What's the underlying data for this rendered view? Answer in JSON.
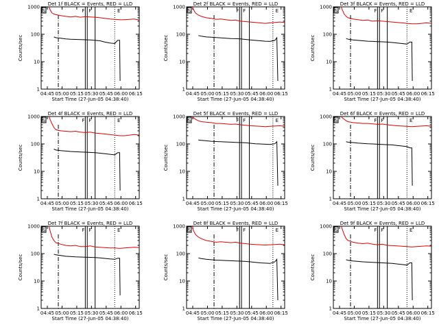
{
  "chart_data": {
    "type": "line",
    "y_scale": "log",
    "ylim": [
      1,
      1000
    ],
    "xlim_minutes": [
      0,
      100
    ],
    "ylabel": "Counts/sec",
    "xlabel": "Start Time (27-Jun-05 04:38:40)",
    "x_ticks": [
      {
        "label": "04:45",
        "minute": 6.3
      },
      {
        "label": "05:00",
        "minute": 21.3
      },
      {
        "label": "05:15",
        "minute": 36.3
      },
      {
        "label": "05:30",
        "minute": 51.3
      },
      {
        "label": "05:45",
        "minute": 66.3
      },
      {
        "label": "06:00",
        "minute": 81.3
      },
      {
        "label": "06:15",
        "minute": 96.3
      }
    ],
    "y_ticks": [
      {
        "label": "1",
        "value": 1
      },
      {
        "label": "10",
        "value": 10
      },
      {
        "label": "100",
        "value": 100
      },
      {
        "label": "1000",
        "value": 1000
      }
    ],
    "series_colors": {
      "events": "#000000",
      "lld": "#dd0000"
    },
    "flag_labels": {
      "start": "S",
      "flare": "F",
      "end": "E"
    },
    "panels": [
      {
        "title": "Det 1f BLACK = Events, RED = LLD",
        "dashdot_line_minute": 17.5,
        "flare_lines_minute": [
          45,
          47,
          55
        ],
        "eclipse_line_minute": 75,
        "series": [
          {
            "name": "LLD",
            "key": "lld",
            "x": [
              8,
              9,
              11,
              13,
              15,
              20,
              25,
              30,
              35,
              40,
              45,
              50,
              55,
              60,
              65,
              70,
              75,
              80,
              85,
              90,
              95,
              100
            ],
            "y": [
              1000,
              800,
              600,
              550,
              520,
              480,
              450,
              430,
              450,
              420,
              440,
              430,
              420,
              400,
              380,
              360,
              350,
              340,
              340,
              350,
              360,
              330
            ]
          },
          {
            "name": "Events",
            "key": "events",
            "x": [
              13,
              15,
              20,
              25,
              30,
              35,
              40,
              45,
              50,
              55,
              60,
              65,
              70,
              75,
              78,
              80,
              80.5
            ],
            "y": [
              80,
              75,
              72,
              68,
              66,
              65,
              64,
              63,
              62,
              60,
              58,
              52,
              48,
              46,
              60,
              60,
              2
            ]
          }
        ]
      },
      {
        "title": "Det 2f BLACK = Events, RED = LLD",
        "dashdot_line_minute": 28,
        "flare_lines_minute": [
          54,
          56,
          64
        ],
        "eclipse_line_minute": 88,
        "series": [
          {
            "name": "LLD",
            "key": "lld",
            "x": [
              6,
              7,
              9,
              12,
              15,
              20,
              25,
              30,
              35,
              40,
              45,
              50,
              55,
              60,
              65,
              70,
              75,
              80,
              85,
              90,
              95,
              100
            ],
            "y": [
              1000,
              800,
              600,
              500,
              450,
              400,
              380,
              350,
              360,
              340,
              320,
              330,
              300,
              290,
              280,
              270,
              260,
              250,
              260,
              270,
              280,
              270
            ]
          },
          {
            "name": "Events",
            "key": "events",
            "x": [
              12,
              15,
              20,
              25,
              30,
              35,
              40,
              45,
              50,
              55,
              60,
              65,
              70,
              75,
              80,
              85,
              90,
              92,
              93
            ],
            "y": [
              90,
              85,
              80,
              78,
              76,
              74,
              72,
              70,
              69,
              68,
              65,
              62,
              60,
              58,
              56,
              55,
              60,
              75,
              2
            ]
          }
        ]
      },
      {
        "title": "Det 3f BLACK = Events, RED = LLD",
        "dashdot_line_minute": 17.5,
        "flare_lines_minute": [
          45,
          47,
          55
        ],
        "eclipse_line_minute": 75,
        "series": [
          {
            "name": "LLD",
            "key": "lld",
            "x": [
              8,
              9,
              11,
              13,
              15,
              20,
              25,
              30,
              35,
              40,
              45,
              50,
              55,
              60,
              65,
              70,
              75,
              80,
              85,
              90,
              95,
              100
            ],
            "y": [
              1000,
              800,
              550,
              450,
              400,
              360,
              340,
              320,
              330,
              300,
              310,
              300,
              290,
              280,
              270,
              260,
              250,
              240,
              240,
              250,
              260,
              250
            ]
          },
          {
            "name": "Events",
            "key": "events",
            "x": [
              13,
              15,
              20,
              25,
              30,
              35,
              40,
              45,
              50,
              55,
              60,
              65,
              70,
              75,
              78,
              80,
              80.5
            ],
            "y": [
              70,
              66,
              62,
              60,
              58,
              56,
              55,
              54,
              53,
              52,
              50,
              48,
              46,
              44,
              52,
              52,
              2
            ]
          }
        ]
      },
      {
        "title": "Det 4f BLACK = Events, RED = LLD",
        "dashdot_line_minute": 17.5,
        "flare_lines_minute": [
          45,
          47,
          55
        ],
        "eclipse_line_minute": 75,
        "series": [
          {
            "name": "LLD",
            "key": "lld",
            "x": [
              8,
              9,
              11,
              13,
              15,
              20,
              25,
              30,
              35,
              40,
              45,
              50,
              55,
              60,
              65,
              70,
              75,
              80,
              85,
              90,
              95,
              100
            ],
            "y": [
              1000,
              800,
              550,
              400,
              330,
              300,
              290,
              280,
              290,
              270,
              260,
              270,
              250,
              240,
              230,
              220,
              210,
              200,
              200,
              210,
              220,
              210
            ]
          },
          {
            "name": "Events",
            "key": "events",
            "x": [
              13,
              15,
              20,
              25,
              30,
              35,
              40,
              45,
              50,
              55,
              60,
              65,
              70,
              75,
              78,
              80,
              80.5
            ],
            "y": [
              65,
              60,
              57,
              55,
              53,
              52,
              51,
              50,
              49,
              48,
              46,
              44,
              42,
              40,
              48,
              48,
              2
            ]
          }
        ]
      },
      {
        "title": "Det 5f BLACK = Events, RED = LLD",
        "dashdot_line_minute": 28,
        "flare_lines_minute": [
          54,
          56,
          64
        ],
        "eclipse_line_minute": 88,
        "series": [
          {
            "name": "LLD",
            "key": "lld",
            "x": [
              6,
              7,
              9,
              12,
              15,
              20,
              25,
              30,
              35,
              40,
              45,
              50,
              55,
              60,
              65,
              70,
              75,
              80,
              85,
              90,
              95,
              100
            ],
            "y": [
              1000,
              900,
              800,
              700,
              650,
              620,
              600,
              560,
              560,
              540,
              520,
              530,
              500,
              480,
              460,
              450,
              440,
              430,
              440,
              450,
              460,
              440
            ]
          },
          {
            "name": "Events",
            "key": "events",
            "x": [
              12,
              15,
              20,
              25,
              30,
              35,
              40,
              45,
              50,
              55,
              60,
              65,
              70,
              75,
              80,
              85,
              90,
              92,
              93
            ],
            "y": [
              140,
              135,
              130,
              125,
              122,
              120,
              118,
              116,
              114,
              112,
              110,
              106,
              102,
              100,
              98,
              96,
              102,
              120,
              3
            ]
          }
        ]
      },
      {
        "title": "Det 6f BLACK = Events, RED = LLD",
        "dashdot_line_minute": 17.5,
        "flare_lines_minute": [
          45,
          47,
          55
        ],
        "eclipse_line_minute": 75,
        "series": [
          {
            "name": "LLD",
            "key": "lld",
            "x": [
              8,
              9,
              11,
              13,
              15,
              20,
              25,
              30,
              35,
              40,
              45,
              50,
              55,
              60,
              65,
              70,
              75,
              80,
              85,
              90,
              95,
              100
            ],
            "y": [
              1000,
              900,
              800,
              700,
              650,
              600,
              580,
              560,
              560,
              540,
              520,
              530,
              500,
              480,
              460,
              450,
              440,
              430,
              440,
              450,
              460,
              440
            ]
          },
          {
            "name": "Events",
            "key": "events",
            "x": [
              13,
              15,
              20,
              25,
              30,
              35,
              40,
              45,
              50,
              55,
              60,
              65,
              70,
              75,
              78,
              80,
              80.5
            ],
            "y": [
              120,
              116,
              112,
              108,
              105,
              102,
              100,
              98,
              96,
              94,
              92,
              88,
              84,
              80,
              72,
              72,
              3
            ]
          }
        ]
      },
      {
        "title": "Det 7f BLACK = Events, RED = LLD",
        "dashdot_line_minute": 17.5,
        "flare_lines_minute": [
          45,
          47,
          55
        ],
        "eclipse_line_minute": 75,
        "series": [
          {
            "name": "LLD",
            "key": "lld",
            "x": [
              8,
              9,
              11,
              13,
              15,
              20,
              25,
              30,
              35,
              40,
              45,
              50,
              55,
              60,
              65,
              70,
              75,
              80,
              85,
              90,
              95,
              100
            ],
            "y": [
              1000,
              700,
              400,
              300,
              250,
              220,
              200,
              190,
              200,
              180,
              180,
              190,
              175,
              170,
              165,
              160,
              160,
              155,
              160,
              165,
              170,
              165
            ]
          },
          {
            "name": "Events",
            "key": "events",
            "x": [
              13,
              15,
              20,
              25,
              30,
              35,
              40,
              45,
              50,
              55,
              60,
              65,
              70,
              75,
              78,
              80,
              80.5
            ],
            "y": [
              95,
              90,
              85,
              80,
              78,
              76,
              75,
              74,
              73,
              72,
              70,
              67,
              64,
              62,
              68,
              68,
              3
            ]
          }
        ]
      },
      {
        "title": "Det 8f BLACK = Events, RED = LLD",
        "dashdot_line_minute": 28,
        "flare_lines_minute": [
          54,
          56,
          64
        ],
        "eclipse_line_minute": 88,
        "series": [
          {
            "name": "LLD",
            "key": "lld",
            "x": [
              6,
              7,
              9,
              12,
              15,
              20,
              25,
              30,
              35,
              40,
              45,
              50,
              55,
              60,
              65,
              70,
              75,
              80,
              85,
              90,
              95,
              100
            ],
            "y": [
              1000,
              700,
              500,
              400,
              350,
              300,
              280,
              260,
              270,
              260,
              250,
              260,
              240,
              230,
              220,
              215,
              210,
              205,
              210,
              215,
              220,
              210
            ]
          },
          {
            "name": "Events",
            "key": "events",
            "x": [
              12,
              15,
              20,
              25,
              30,
              35,
              40,
              45,
              50,
              55,
              60,
              65,
              70,
              75,
              80,
              85,
              90,
              92,
              93
            ],
            "y": [
              70,
              66,
              62,
              60,
              58,
              57,
              56,
              55,
              54,
              53,
              52,
              50,
              48,
              46,
              45,
              44,
              50,
              62,
              2
            ]
          }
        ]
      },
      {
        "title": "Det 9f BLACK = Events, RED = LLD",
        "dashdot_line_minute": 17.5,
        "flare_lines_minute": [
          45,
          47,
          55
        ],
        "eclipse_line_minute": 75,
        "series": [
          {
            "name": "LLD",
            "key": "lld",
            "x": [
              8,
              9,
              11,
              13,
              15,
              20,
              25,
              30,
              35,
              40,
              45,
              50,
              55,
              60,
              65,
              70,
              75,
              80,
              85,
              90,
              95,
              100
            ],
            "y": [
              1000,
              800,
              500,
              350,
              300,
              260,
              240,
              230,
              240,
              220,
              210,
              220,
              200,
              195,
              190,
              185,
              180,
              175,
              180,
              185,
              190,
              185
            ]
          },
          {
            "name": "Events",
            "key": "events",
            "x": [
              13,
              15,
              20,
              25,
              30,
              35,
              40,
              45,
              50,
              55,
              60,
              65,
              70,
              75,
              78,
              80,
              80.5
            ],
            "y": [
              60,
              57,
              54,
              52,
              50,
              49,
              48,
              47,
              46,
              45,
              44,
              42,
              40,
              38,
              46,
              46,
              2
            ]
          }
        ]
      }
    ]
  }
}
